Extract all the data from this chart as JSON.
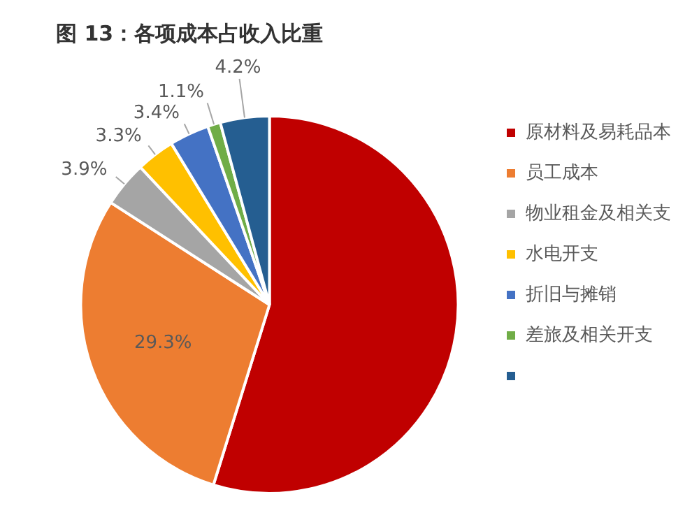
{
  "chart_data": {
    "type": "pie",
    "title": "图 13：各项成本占收入比重",
    "categories": [
      "原材料及易耗品本",
      "员工成本",
      "物业租金及相关支",
      "水电开支",
      "折旧与摊销",
      "差旅及相关开支",
      null
    ],
    "values": [
      54.8,
      29.3,
      3.9,
      3.3,
      3.4,
      1.1,
      4.2
    ],
    "colors": [
      "#c00000",
      "#ed7d31",
      "#a5a5a5",
      "#ffc000",
      "#4472c4",
      "#70ad47",
      "#255e91"
    ],
    "value_labels": [
      null,
      "29.3%",
      "3.9%",
      "3.3%",
      "3.4%",
      "1.1%",
      "4.2%"
    ],
    "legend": "right"
  }
}
